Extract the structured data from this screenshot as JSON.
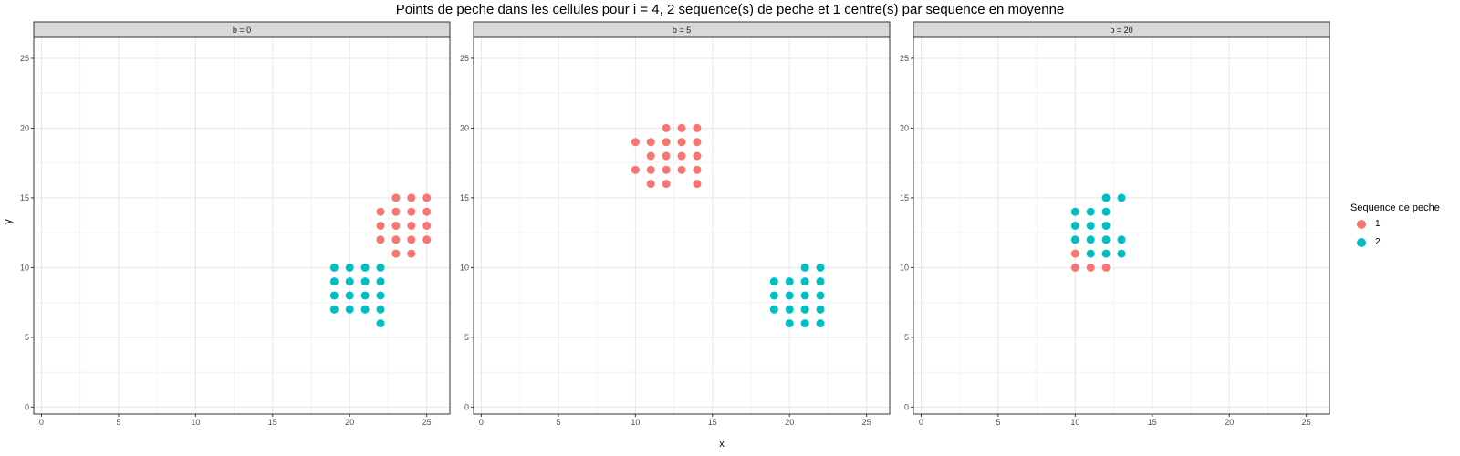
{
  "chart_data": {
    "type": "scatter",
    "title": "Points de peche dans les cellules pour i = 4, 2 sequence(s) de peche et 1 centre(s) par sequence en moyenne",
    "xlabel": "x",
    "ylabel": "y",
    "xlim": [
      -0.5,
      26.5
    ],
    "ylim": [
      -0.5,
      26.5
    ],
    "x_ticks": [
      0,
      5,
      10,
      15,
      20,
      25
    ],
    "y_ticks": [
      0,
      5,
      10,
      15,
      20,
      25
    ],
    "grid": true,
    "legend": {
      "title": "Sequence de peche",
      "placement": "right",
      "entries": [
        {
          "label": "1",
          "color": "#F8766D"
        },
        {
          "label": "2",
          "color": "#00BFC4"
        }
      ]
    },
    "panels": [
      {
        "label": "b = 0",
        "series": [
          {
            "name": "1",
            "color": "#F8766D",
            "points": [
              [
                23,
                15
              ],
              [
                24,
                15
              ],
              [
                25,
                15
              ],
              [
                22,
                14
              ],
              [
                23,
                14
              ],
              [
                24,
                14
              ],
              [
                25,
                14
              ],
              [
                22,
                13
              ],
              [
                23,
                13
              ],
              [
                24,
                13
              ],
              [
                25,
                13
              ],
              [
                22,
                12
              ],
              [
                23,
                12
              ],
              [
                24,
                12
              ],
              [
                25,
                12
              ],
              [
                23,
                11
              ],
              [
                24,
                11
              ]
            ]
          },
          {
            "name": "2",
            "color": "#00BFC4",
            "points": [
              [
                19,
                10
              ],
              [
                20,
                10
              ],
              [
                21,
                10
              ],
              [
                22,
                10
              ],
              [
                19,
                9
              ],
              [
                20,
                9
              ],
              [
                21,
                9
              ],
              [
                22,
                9
              ],
              [
                19,
                8
              ],
              [
                20,
                8
              ],
              [
                21,
                8
              ],
              [
                22,
                8
              ],
              [
                19,
                7
              ],
              [
                20,
                7
              ],
              [
                21,
                7
              ],
              [
                22,
                7
              ],
              [
                22,
                6
              ]
            ]
          }
        ]
      },
      {
        "label": "b = 5",
        "series": [
          {
            "name": "1",
            "color": "#F8766D",
            "points": [
              [
                12,
                20
              ],
              [
                13,
                20
              ],
              [
                14,
                20
              ],
              [
                10,
                19
              ],
              [
                11,
                19
              ],
              [
                12,
                19
              ],
              [
                13,
                19
              ],
              [
                14,
                19
              ],
              [
                11,
                18
              ],
              [
                12,
                18
              ],
              [
                13,
                18
              ],
              [
                14,
                18
              ],
              [
                10,
                17
              ],
              [
                11,
                17
              ],
              [
                12,
                17
              ],
              [
                13,
                17
              ],
              [
                14,
                17
              ],
              [
                11,
                16
              ],
              [
                12,
                16
              ],
              [
                14,
                16
              ]
            ]
          },
          {
            "name": "2",
            "color": "#00BFC4",
            "points": [
              [
                21,
                10
              ],
              [
                22,
                10
              ],
              [
                19,
                9
              ],
              [
                20,
                9
              ],
              [
                21,
                9
              ],
              [
                22,
                9
              ],
              [
                19,
                8
              ],
              [
                20,
                8
              ],
              [
                21,
                8
              ],
              [
                22,
                8
              ],
              [
                19,
                7
              ],
              [
                20,
                7
              ],
              [
                21,
                7
              ],
              [
                22,
                7
              ],
              [
                20,
                6
              ],
              [
                21,
                6
              ],
              [
                22,
                6
              ]
            ]
          }
        ]
      },
      {
        "label": "b = 20",
        "series": [
          {
            "name": "1",
            "color": "#F8766D",
            "points": [
              [
                10,
                11
              ],
              [
                10,
                10
              ],
              [
                11,
                10
              ],
              [
                12,
                10
              ]
            ]
          },
          {
            "name": "2",
            "color": "#00BFC4",
            "points": [
              [
                12,
                15
              ],
              [
                13,
                15
              ],
              [
                10,
                14
              ],
              [
                11,
                14
              ],
              [
                12,
                14
              ],
              [
                10,
                13
              ],
              [
                11,
                13
              ],
              [
                12,
                13
              ],
              [
                10,
                12
              ],
              [
                11,
                12
              ],
              [
                12,
                12
              ],
              [
                13,
                12
              ],
              [
                11,
                11
              ],
              [
                12,
                11
              ],
              [
                13,
                11
              ]
            ]
          }
        ]
      }
    ]
  }
}
